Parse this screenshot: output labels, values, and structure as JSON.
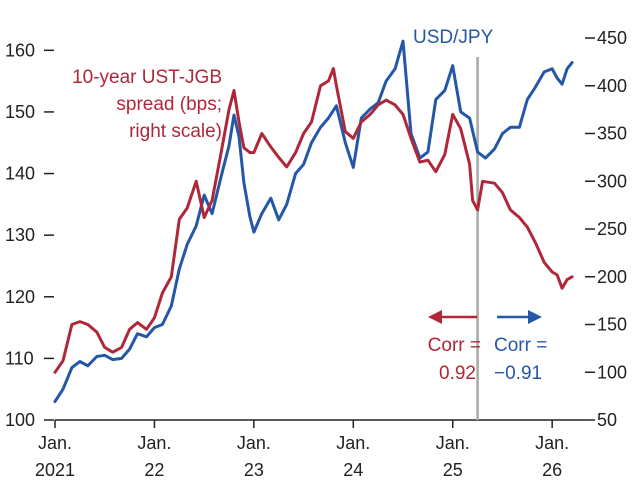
{
  "colors": {
    "spread": "#b0273a",
    "usdjpy": "#2457a8",
    "divider": "#a9a9a9",
    "axis": "#222222"
  },
  "chart_data": {
    "type": "line",
    "title": "",
    "x_ticks": [
      {
        "label_line1": "Jan.",
        "label_line2": "2021",
        "year": 2021.0
      },
      {
        "label_line1": "Jan.",
        "label_line2": "22",
        "year": 2022.0
      },
      {
        "label_line1": "Jan.",
        "label_line2": "23",
        "year": 2023.0
      },
      {
        "label_line1": "Jan.",
        "label_line2": "24",
        "year": 2024.0
      },
      {
        "label_line1": "Jan.",
        "label_line2": "25",
        "year": 2025.0
      },
      {
        "label_line1": "Jan.",
        "label_line2": "26",
        "year": 2026.0
      }
    ],
    "x_range": [
      2021.0,
      2026.3
    ],
    "left_axis": {
      "range": [
        100,
        162
      ],
      "ticks": [
        100,
        110,
        120,
        130,
        140,
        150,
        160
      ]
    },
    "right_axis": {
      "range": [
        50,
        450
      ],
      "ticks": [
        50,
        100,
        150,
        200,
        250,
        300,
        350,
        400,
        450
      ]
    },
    "divider_year": 2025.25,
    "series": [
      {
        "name": "USD/JPY",
        "axis": "left",
        "points": [
          [
            2021.0,
            103.0
          ],
          [
            2021.08,
            105.0
          ],
          [
            2021.17,
            108.5
          ],
          [
            2021.25,
            109.5
          ],
          [
            2021.33,
            108.8
          ],
          [
            2021.42,
            110.3
          ],
          [
            2021.5,
            110.5
          ],
          [
            2021.58,
            109.8
          ],
          [
            2021.67,
            110.0
          ],
          [
            2021.75,
            111.5
          ],
          [
            2021.83,
            114.0
          ],
          [
            2021.92,
            113.5
          ],
          [
            2022.0,
            115.0
          ],
          [
            2022.08,
            115.5
          ],
          [
            2022.17,
            118.5
          ],
          [
            2022.25,
            124.5
          ],
          [
            2022.33,
            128.5
          ],
          [
            2022.42,
            131.5
          ],
          [
            2022.5,
            136.5
          ],
          [
            2022.58,
            133.5
          ],
          [
            2022.67,
            139.5
          ],
          [
            2022.75,
            144.5
          ],
          [
            2022.8,
            149.5
          ],
          [
            2022.85,
            146.0
          ],
          [
            2022.9,
            138.5
          ],
          [
            2022.96,
            133.0
          ],
          [
            2023.0,
            130.5
          ],
          [
            2023.08,
            133.5
          ],
          [
            2023.17,
            136.0
          ],
          [
            2023.25,
            132.5
          ],
          [
            2023.33,
            135.0
          ],
          [
            2023.42,
            140.0
          ],
          [
            2023.5,
            141.5
          ],
          [
            2023.58,
            145.0
          ],
          [
            2023.67,
            147.5
          ],
          [
            2023.75,
            149.0
          ],
          [
            2023.83,
            151.0
          ],
          [
            2023.92,
            145.0
          ],
          [
            2024.0,
            141.0
          ],
          [
            2024.08,
            149.0
          ],
          [
            2024.17,
            150.5
          ],
          [
            2024.25,
            151.5
          ],
          [
            2024.33,
            155.0
          ],
          [
            2024.42,
            157.0
          ],
          [
            2024.5,
            161.5
          ],
          [
            2024.58,
            146.5
          ],
          [
            2024.67,
            142.5
          ],
          [
            2024.75,
            143.5
          ],
          [
            2024.83,
            152.0
          ],
          [
            2024.92,
            153.5
          ],
          [
            2025.0,
            157.5
          ],
          [
            2025.08,
            150.0
          ],
          [
            2025.17,
            149.0
          ],
          [
            2025.25,
            143.5
          ],
          [
            2025.33,
            142.5
          ],
          [
            2025.42,
            144.0
          ],
          [
            2025.5,
            146.5
          ],
          [
            2025.58,
            147.5
          ],
          [
            2025.67,
            147.5
          ],
          [
            2025.75,
            152.0
          ],
          [
            2025.83,
            154.0
          ],
          [
            2025.92,
            156.5
          ],
          [
            2026.0,
            157.0
          ],
          [
            2026.05,
            155.5
          ],
          [
            2026.1,
            154.5
          ],
          [
            2026.15,
            157.0
          ],
          [
            2026.2,
            158.0
          ]
        ]
      },
      {
        "name": "10-year UST-JGB spread (bps; right scale)",
        "axis": "right",
        "points": [
          [
            2021.0,
            100.0
          ],
          [
            2021.08,
            112.0
          ],
          [
            2021.17,
            150.0
          ],
          [
            2021.25,
            153.0
          ],
          [
            2021.33,
            150.0
          ],
          [
            2021.42,
            142.0
          ],
          [
            2021.5,
            126.0
          ],
          [
            2021.58,
            121.0
          ],
          [
            2021.67,
            126.0
          ],
          [
            2021.75,
            145.0
          ],
          [
            2021.83,
            152.0
          ],
          [
            2021.92,
            145.0
          ],
          [
            2022.0,
            157.0
          ],
          [
            2022.08,
            183.0
          ],
          [
            2022.17,
            200.0
          ],
          [
            2022.25,
            260.0
          ],
          [
            2022.33,
            272.0
          ],
          [
            2022.42,
            300.0
          ],
          [
            2022.5,
            262.0
          ],
          [
            2022.58,
            280.0
          ],
          [
            2022.67,
            330.0
          ],
          [
            2022.75,
            375.0
          ],
          [
            2022.8,
            395.0
          ],
          [
            2022.85,
            362.0
          ],
          [
            2022.9,
            335.0
          ],
          [
            2022.96,
            330.0
          ],
          [
            2023.0,
            330.0
          ],
          [
            2023.08,
            350.0
          ],
          [
            2023.17,
            336.0
          ],
          [
            2023.25,
            325.0
          ],
          [
            2023.33,
            315.0
          ],
          [
            2023.42,
            330.0
          ],
          [
            2023.5,
            350.0
          ],
          [
            2023.58,
            362.0
          ],
          [
            2023.67,
            400.0
          ],
          [
            2023.75,
            405.0
          ],
          [
            2023.8,
            418.0
          ],
          [
            2023.83,
            400.0
          ],
          [
            2023.92,
            352.0
          ],
          [
            2024.0,
            345.0
          ],
          [
            2024.08,
            362.0
          ],
          [
            2024.17,
            370.0
          ],
          [
            2024.25,
            380.0
          ],
          [
            2024.33,
            385.0
          ],
          [
            2024.42,
            380.0
          ],
          [
            2024.5,
            370.0
          ],
          [
            2024.58,
            345.0
          ],
          [
            2024.67,
            320.0
          ],
          [
            2024.75,
            322.0
          ],
          [
            2024.83,
            310.0
          ],
          [
            2024.92,
            328.0
          ],
          [
            2025.0,
            370.0
          ],
          [
            2025.08,
            355.0
          ],
          [
            2025.17,
            318.0
          ],
          [
            2025.2,
            280.0
          ],
          [
            2025.25,
            270.0
          ],
          [
            2025.3,
            300.0
          ],
          [
            2025.42,
            298.0
          ],
          [
            2025.5,
            288.0
          ],
          [
            2025.58,
            270.0
          ],
          [
            2025.67,
            262.0
          ],
          [
            2025.75,
            252.0
          ],
          [
            2025.83,
            236.0
          ],
          [
            2025.92,
            215.0
          ],
          [
            2026.0,
            205.0
          ],
          [
            2026.05,
            202.0
          ],
          [
            2026.1,
            188.0
          ],
          [
            2026.15,
            197.0
          ],
          [
            2026.2,
            200.0
          ]
        ]
      }
    ],
    "annotations": {
      "usdjpy_label": "USD/JPY",
      "spread_label_line1": "10-year UST-JGB",
      "spread_label_line2": "spread (bps;",
      "spread_label_line3": "right scale)",
      "corr_left_line1": "Corr =",
      "corr_left_line2": "0.92",
      "corr_right_line1": "Corr =",
      "corr_right_line2": "−0.91"
    }
  }
}
